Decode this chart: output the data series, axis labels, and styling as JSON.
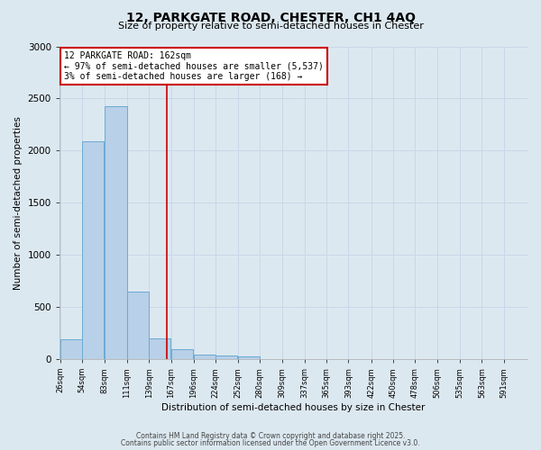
{
  "title_line1": "12, PARKGATE ROAD, CHESTER, CH1 4AQ",
  "title_line2": "Size of property relative to semi-detached houses in Chester",
  "xlabel": "Distribution of semi-detached houses by size in Chester",
  "ylabel": "Number of semi-detached properties",
  "annotation_title": "12 PARKGATE ROAD: 162sqm",
  "annotation_line2": "← 97% of semi-detached houses are smaller (5,537)",
  "annotation_line3": "3% of semi-detached houses are larger (168) →",
  "property_size": 162,
  "bin_width": 28,
  "bin_starts": [
    26,
    54,
    83,
    111,
    139,
    167,
    196,
    224,
    252,
    280,
    309,
    337,
    365,
    393,
    422,
    450,
    478,
    506,
    535,
    563,
    591
  ],
  "bin_labels": [
    "26sqm",
    "54sqm",
    "83sqm",
    "111sqm",
    "139sqm",
    "167sqm",
    "196sqm",
    "224sqm",
    "252sqm",
    "280sqm",
    "309sqm",
    "337sqm",
    "365sqm",
    "393sqm",
    "422sqm",
    "450sqm",
    "478sqm",
    "506sqm",
    "535sqm",
    "563sqm",
    "591sqm"
  ],
  "counts": [
    185,
    2090,
    2430,
    650,
    200,
    90,
    45,
    35,
    25,
    0,
    0,
    0,
    0,
    0,
    0,
    0,
    0,
    0,
    0,
    0,
    0
  ],
  "bar_color": "#b8d0e8",
  "bar_edge_color": "#6aaad4",
  "vline_color": "#cc0000",
  "vline_x": 162,
  "annotation_box_color": "#cc0000",
  "annotation_bg": "white",
  "ylim": [
    0,
    3000
  ],
  "yticks": [
    0,
    500,
    1000,
    1500,
    2000,
    2500,
    3000
  ],
  "grid_color": "#c8d8e8",
  "bg_color": "#dce8f0",
  "footer_line1": "Contains HM Land Registry data © Crown copyright and database right 2025.",
  "footer_line2": "Contains public sector information licensed under the Open Government Licence v3.0."
}
